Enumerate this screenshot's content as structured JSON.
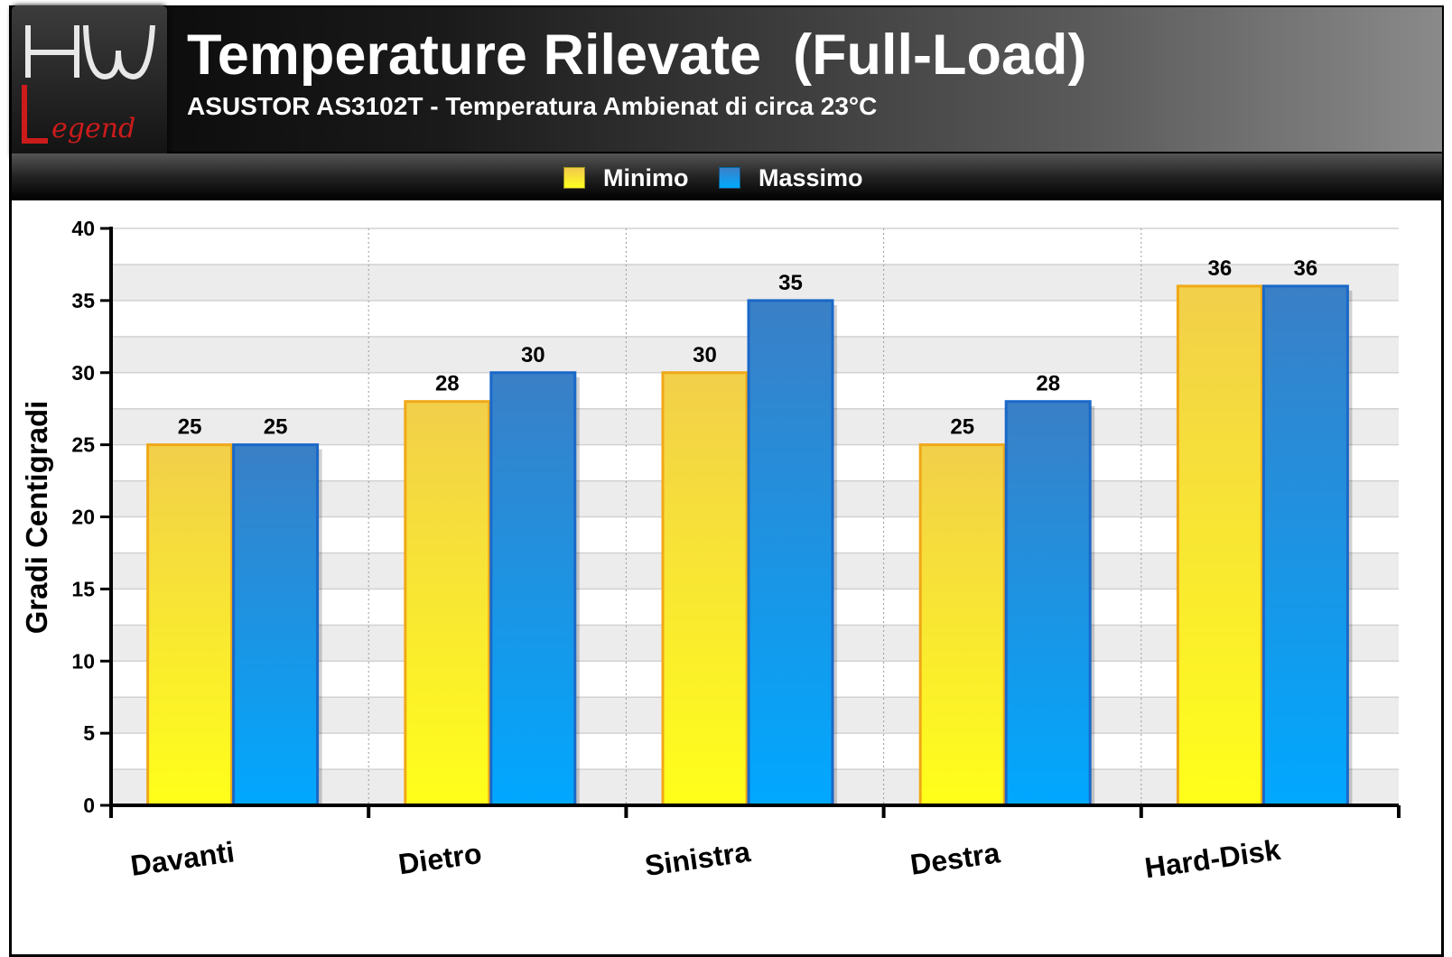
{
  "header": {
    "logo_text": "HW Legend",
    "title": "Temperature Rilevate  (Full-Load)",
    "subtitle": "ASUSTOR AS3102T - Temperatura Ambienat di circa 23°C"
  },
  "legend": [
    {
      "label": "Minimo",
      "color": "#f5d200"
    },
    {
      "label": "Massimo",
      "color": "#1a7fd8"
    }
  ],
  "chart_data": {
    "type": "bar",
    "title": "Temperature Rilevate  (Full-Load)",
    "subtitle": "ASUSTOR AS3102T - Temperatura Ambienat di circa 23°C",
    "ylabel": "Gradi Centigradi",
    "xlabel": "",
    "ylim": [
      0,
      40
    ],
    "yticks": [
      0,
      5,
      10,
      15,
      20,
      25,
      30,
      35,
      40
    ],
    "categories": [
      "Davanti",
      "Dietro",
      "Sinistra",
      "Destra",
      "Hard-Disk"
    ],
    "series": [
      {
        "name": "Minimo",
        "values": [
          25,
          28,
          30,
          25,
          36
        ]
      },
      {
        "name": "Massimo",
        "values": [
          25,
          30,
          35,
          28,
          36
        ]
      }
    ],
    "grid": true,
    "legend_position": "top"
  }
}
